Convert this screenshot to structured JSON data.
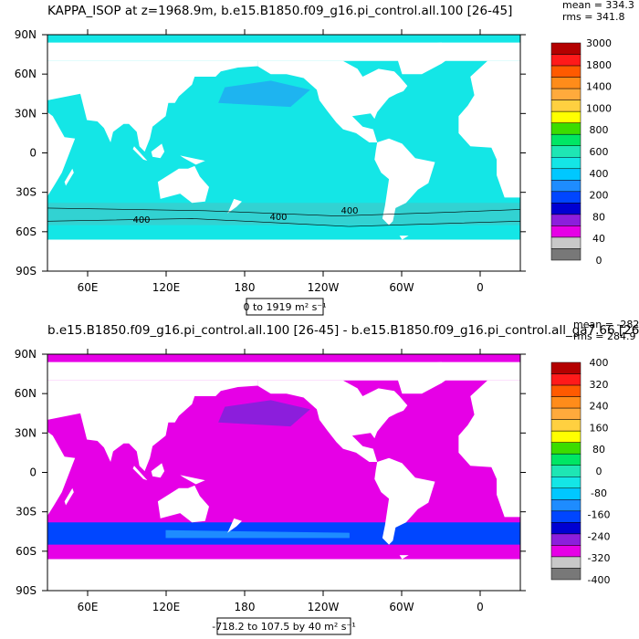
{
  "panels": [
    {
      "title": "KAPPA_ISOP at z=1968.9m, b.e15.B1850.f09_g16.pi_control.all.100 [26-45]",
      "stats": [
        "mean = 334.3",
        "rms = 341.8"
      ],
      "lat_labels": [
        "90N",
        "60N",
        "30N",
        "0",
        "30S",
        "60S",
        "90S"
      ],
      "lon_labels": [
        "60E",
        "120E",
        "180",
        "120W",
        "60W",
        "0"
      ],
      "contour_labels": [
        "400",
        "400",
        "400"
      ],
      "range_label": "0 to 1919 m² s⁻¹",
      "colorbar": {
        "labels": [
          "3000",
          "1800",
          "1400",
          "1000",
          "800",
          "600",
          "400",
          "200",
          "80",
          "40",
          "0"
        ],
        "colors": [
          "#b40000",
          "#ff1a1a",
          "#ff5a00",
          "#ff8c1a",
          "#ffaa3c",
          "#ffd040",
          "#ffff00",
          "#3cdc00",
          "#00e664",
          "#1ee6b4",
          "#14e6e6",
          "#00c8ff",
          "#1e8cff",
          "#0046ff",
          "#0000d2",
          "#8c1edc",
          "#e600e6",
          "#c8c8c8",
          "#787878"
        ]
      },
      "fill": {
        "ocean": "#14e6e6",
        "band": "#32d2d2",
        "patch": "#1eb4f0"
      }
    },
    {
      "title": "b.e15.B1850.f09_g16.pi_control.all.100 [26-45] - b.e15.B1850.f09_g16.pi_control.all_ga7.66 [26-45]",
      "stats": [
        "mean = -282.8",
        "rms = 284.9"
      ],
      "lat_labels": [
        "90N",
        "60N",
        "30N",
        "0",
        "30S",
        "60S",
        "90S"
      ],
      "lon_labels": [
        "60E",
        "120E",
        "180",
        "120W",
        "60W",
        "0"
      ],
      "range_label": "-718.2 to 107.5 by 40 m² s⁻¹",
      "colorbar": {
        "labels": [
          "400",
          "320",
          "240",
          "160",
          "80",
          "0",
          "-80",
          "-160",
          "-240",
          "-320",
          "-400"
        ],
        "colors": [
          "#b40000",
          "#ff1a1a",
          "#ff5a00",
          "#ff8c1a",
          "#ffaa3c",
          "#ffd040",
          "#ffff00",
          "#3cdc00",
          "#00e664",
          "#1ee6b4",
          "#14e6e6",
          "#00c8ff",
          "#1e8cff",
          "#0046ff",
          "#0000d2",
          "#8c1edc",
          "#e600e6",
          "#c8c8c8",
          "#787878"
        ]
      },
      "fill": {
        "ocean": "#e600e6",
        "band": "#0046ff",
        "patch": "#8c1edc"
      }
    }
  ]
}
